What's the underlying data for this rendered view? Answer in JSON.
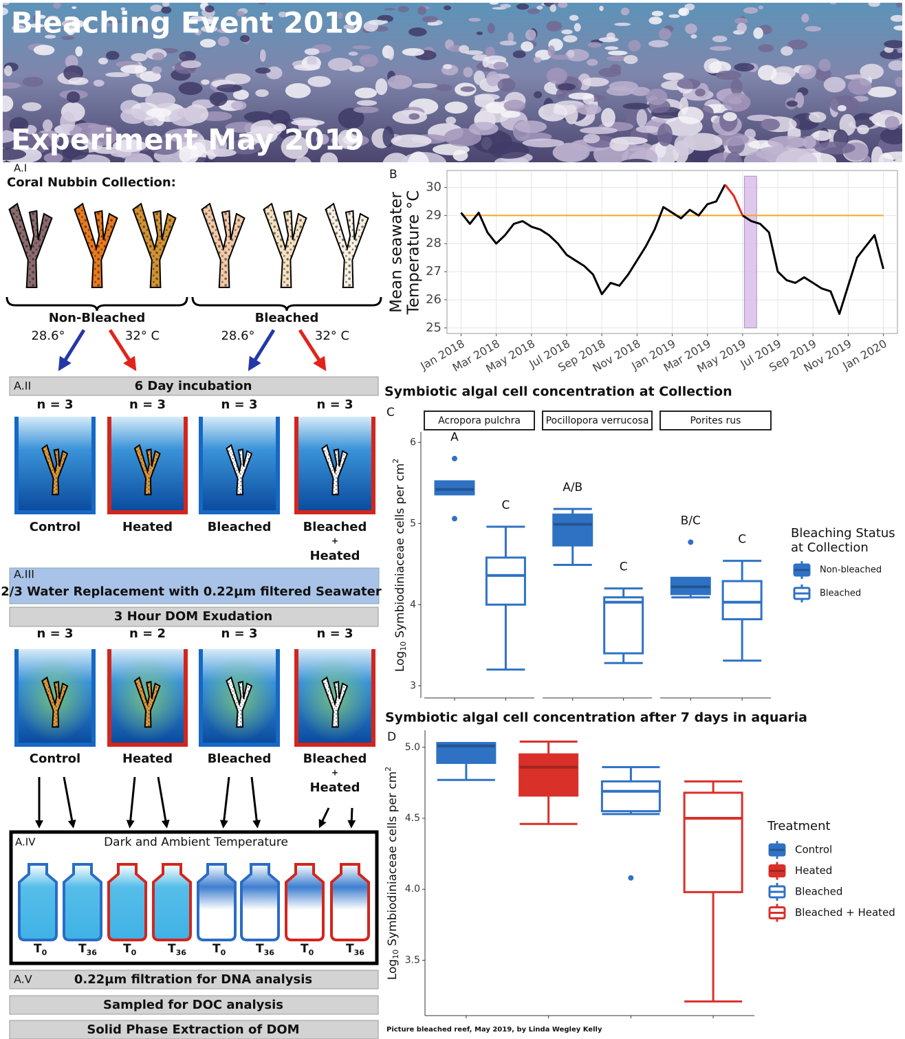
{
  "header": {
    "title": "Bleaching Event 2019",
    "subtitle": "Experiment May 2019"
  },
  "workflow": {
    "collection": {
      "step": "A.I",
      "title": "Coral Nubbin Collection:",
      "groups": [
        {
          "name": "Non-Bleached",
          "temps": [
            "28.6°",
            "32° C"
          ]
        },
        {
          "name": "Bleached",
          "temps": [
            "28.6°",
            "32° C"
          ]
        }
      ]
    },
    "incubation": {
      "step": "A.II",
      "title": "6 Day incubation",
      "tanks": [
        {
          "n": "n = 3",
          "label": [
            "Control"
          ]
        },
        {
          "n": "n = 3",
          "label": [
            "Heated"
          ]
        },
        {
          "n": "n = 3",
          "label": [
            "Bleached"
          ]
        },
        {
          "n": "n = 3",
          "label": [
            "Bleached",
            "+",
            "Heated"
          ]
        }
      ]
    },
    "replacement": {
      "step": "A.III",
      "title": "2/3 Water Replacement with 0.22µm filtered Seawater"
    },
    "exudation": {
      "title": "3 Hour DOM Exudation",
      "tanks": [
        {
          "n": "n = 3",
          "label": [
            "Control"
          ]
        },
        {
          "n": "n = 2",
          "label": [
            "Heated"
          ]
        },
        {
          "n": "n = 3",
          "label": [
            "Bleached"
          ]
        },
        {
          "n": "n = 3",
          "label": [
            "Bleached",
            "+",
            "Heated"
          ]
        }
      ]
    },
    "sampling": {
      "step": "A.IV",
      "title": "Dark and Ambient Temperature",
      "bottles": [
        {
          "main": "T",
          "sub": "0"
        },
        {
          "main": "T",
          "sub": "36"
        },
        {
          "main": "T",
          "sub": "0"
        },
        {
          "main": "T",
          "sub": "36"
        },
        {
          "main": "T",
          "sub": "0"
        },
        {
          "main": "T",
          "sub": "36"
        },
        {
          "main": "T",
          "sub": "0"
        },
        {
          "main": "T",
          "sub": "36"
        }
      ]
    },
    "processing": {
      "step": "A.V",
      "steps": [
        "0.22µm filtration for DNA analysis",
        "Sampled for DOC analysis",
        "Solid Phase Extraction of DOM"
      ]
    }
  },
  "chart_data": [
    {
      "type": "line",
      "panel": "B",
      "ylabel": [
        "Mean seawater",
        "Temperature °C"
      ],
      "x": [
        0,
        0.5,
        1,
        1.5,
        2,
        2.5,
        3,
        3.5,
        4,
        4.5,
        5,
        5.5,
        6,
        6.5,
        7,
        7.5,
        8,
        8.5,
        9,
        9.5,
        10,
        10.5,
        11,
        11.5,
        12,
        12.5,
        13,
        13.5,
        14,
        14.5,
        15,
        15.5,
        16,
        16.5,
        17,
        17.5,
        18,
        18.5,
        19,
        19.5,
        20,
        20.5,
        21,
        21.5,
        22,
        22.5,
        23,
        23.5,
        24
      ],
      "xlim": [
        -0.8,
        24.8
      ],
      "xticks": [
        {
          "value": 0,
          "label": "Jan 2018"
        },
        {
          "value": 2,
          "label": "Mar 2018"
        },
        {
          "value": 4,
          "label": "May 2018"
        },
        {
          "value": 6,
          "label": "Jul 2018"
        },
        {
          "value": 8,
          "label": "Sep 2018"
        },
        {
          "value": 10,
          "label": "Nov 2018"
        },
        {
          "value": 12,
          "label": "Jan 2019"
        },
        {
          "value": 14,
          "label": "Mar 2019"
        },
        {
          "value": 16,
          "label": "May 2019"
        },
        {
          "value": 18,
          "label": "Jul 2019"
        },
        {
          "value": 20,
          "label": "Sep 2019"
        },
        {
          "value": 22,
          "label": "Nov 2019"
        },
        {
          "value": 24,
          "label": "Jan 2020"
        }
      ],
      "ylim": [
        24.8,
        30.6
      ],
      "yticks": [
        25,
        26,
        27,
        28,
        29,
        30
      ],
      "grid": true,
      "series": [
        {
          "color": "#000000",
          "values": [
            29.1,
            28.7,
            29.1,
            28.4,
            28.0,
            28.3,
            28.7,
            28.8,
            28.6,
            28.5,
            28.3,
            28.0,
            27.6,
            27.4,
            27.2,
            26.9,
            26.2,
            26.6,
            26.5,
            26.9,
            27.4,
            27.9,
            28.5,
            29.3,
            29.1,
            28.9,
            29.2,
            29.0,
            29.4,
            29.5,
            30.1,
            null,
            29.0,
            28.8,
            28.7,
            28.4,
            27.0,
            26.7,
            26.6,
            26.8,
            26.6,
            26.4,
            26.3,
            25.5,
            26.5,
            27.5,
            27.9,
            28.3,
            27.1
          ]
        },
        {
          "color": "#e8261e",
          "values": [
            null,
            null,
            null,
            null,
            null,
            null,
            null,
            null,
            null,
            null,
            null,
            null,
            null,
            null,
            null,
            null,
            null,
            null,
            null,
            null,
            null,
            null,
            null,
            null,
            null,
            null,
            null,
            null,
            null,
            null,
            30.1,
            29.7,
            29.0,
            null,
            null,
            null,
            null,
            null,
            null,
            null,
            null,
            null,
            null,
            null,
            null,
            null,
            null,
            null,
            null
          ]
        }
      ],
      "threshold": {
        "value": 29,
        "color": "#f5a623"
      },
      "highlight": {
        "x": [
          16.1,
          16.8
        ],
        "y": [
          25,
          30.4
        ],
        "color": "#d9bfe8"
      }
    },
    {
      "type": "box",
      "panel": "C",
      "title": "Symbiotic algal cell concentration at Collection",
      "ylabel": {
        "prefix": "Log",
        "sub": "10",
        "main": "Symbiodiniaceae cells per cm",
        "sup": "2"
      },
      "ylim": [
        2.85,
        6.13
      ],
      "yticks": [
        3,
        4,
        5,
        6
      ],
      "legend_title": [
        "Bleaching Status",
        "at Collection"
      ],
      "groups": [
        {
          "name": "Non-bleached",
          "color": "#2f72c4",
          "style": "filled"
        },
        {
          "name": "Bleached",
          "color": "#2f72c4",
          "style": "open"
        }
      ],
      "facets": [
        {
          "name": "Acropora pulchra",
          "boxes": [
            {
              "min": 5.36,
              "q1": 5.36,
              "median": 5.42,
              "q3": 5.52,
              "max": 5.52,
              "outliers": [
                5.8,
                5.06
              ],
              "letter": "A"
            },
            {
              "min": 3.2,
              "q1": 4.0,
              "median": 4.36,
              "q3": 4.58,
              "max": 4.96,
              "outliers": [],
              "letter": "C"
            }
          ]
        },
        {
          "name": "Pocillopora verrucosa",
          "boxes": [
            {
              "min": 4.49,
              "q1": 4.73,
              "median": 4.99,
              "q3": 5.11,
              "max": 5.18,
              "outliers": [],
              "letter": "A/B"
            },
            {
              "min": 3.28,
              "q1": 3.4,
              "median": 4.03,
              "q3": 4.09,
              "max": 4.2,
              "outliers": [],
              "letter": "C"
            }
          ]
        },
        {
          "name": "Porites rus",
          "boxes": [
            {
              "min": 4.09,
              "q1": 4.13,
              "median": 4.22,
              "q3": 4.33,
              "max": 4.33,
              "outliers": [
                4.77
              ],
              "letter": "B/C"
            },
            {
              "min": 3.31,
              "q1": 3.82,
              "median": 4.03,
              "q3": 4.29,
              "max": 4.54,
              "outliers": [],
              "letter": "C"
            }
          ]
        }
      ]
    },
    {
      "type": "box",
      "panel": "D",
      "title": "Symbiotic algal cell concentration after 7 days in aquaria",
      "ylabel": {
        "prefix": "Log",
        "sub": "10",
        "main": "Symbiodiniaceae cells per cm",
        "sup": "2"
      },
      "ylim": [
        3.11,
        5.12
      ],
      "yticks": [
        3.5,
        {
          "value": 4.0,
          "label": "4.0"
        },
        4.5,
        {
          "value": 5.0,
          "label": "5.0"
        }
      ],
      "legend_title": "Treatment",
      "boxes": [
        {
          "name": "Control",
          "color": "#2f72c4",
          "style": "filled",
          "min": 4.77,
          "q1": 4.89,
          "median": 5.01,
          "q3": 5.03,
          "max": 5.03,
          "outliers": []
        },
        {
          "name": "Heated",
          "color": "#d9302a",
          "style": "filled",
          "min": 4.46,
          "q1": 4.66,
          "median": 4.86,
          "q3": 4.95,
          "max": 5.04,
          "outliers": []
        },
        {
          "name": "Bleached",
          "color": "#2f72c4",
          "style": "open",
          "min": 4.53,
          "q1": 4.55,
          "median": 4.69,
          "q3": 4.76,
          "max": 4.86,
          "outliers": [
            4.08
          ]
        },
        {
          "name": "Bleached + Heated",
          "color": "#d9302a",
          "style": "open",
          "min": 3.21,
          "q1": 3.98,
          "median": 4.5,
          "q3": 4.68,
          "max": 4.76,
          "outliers": []
        }
      ]
    }
  ],
  "credit": "Picture bleached reef, May 2019, by Linda Wegley Kelly"
}
